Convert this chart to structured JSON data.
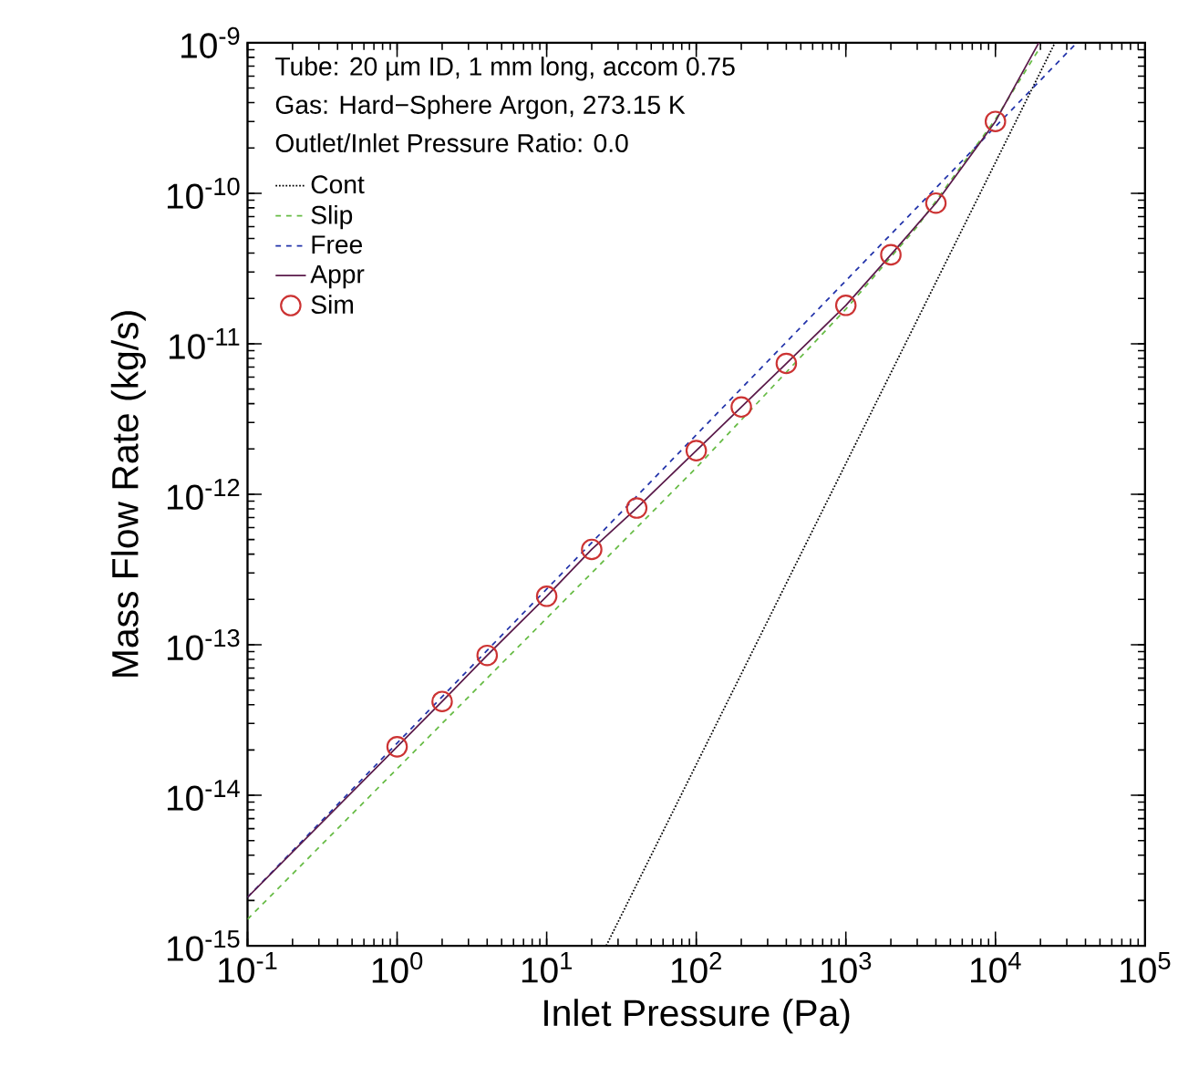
{
  "chart_data": {
    "type": "line",
    "xlabel": "Inlet Pressure (Pa)",
    "ylabel": "Mass Flow Rate (kg/s)",
    "log": "xy",
    "xlim": [
      0.1,
      100000
    ],
    "ylim": [
      1e-15,
      1e-09
    ],
    "xticks": [
      {
        "value": 0.1,
        "label": "10$^{-1}$"
      },
      {
        "value": 1,
        "label": "10$^{0}$"
      },
      {
        "value": 10,
        "label": "10$^{1}$"
      },
      {
        "value": 100,
        "label": "10$^{2}$"
      },
      {
        "value": 1000,
        "label": "10$^{3}$"
      },
      {
        "value": 10000,
        "label": "10$^{4}$"
      },
      {
        "value": 100000,
        "label": "10$^{5}$"
      }
    ],
    "yticks": [
      {
        "value": 1e-15,
        "label": "10$^{-15}$"
      },
      {
        "value": 1e-14,
        "label": "10$^{-14}$"
      },
      {
        "value": 1e-13,
        "label": "10$^{-13}$"
      },
      {
        "value": 1e-12,
        "label": "10$^{-12}$"
      },
      {
        "value": 1e-11,
        "label": "10$^{-11}$"
      },
      {
        "value": 1e-10,
        "label": "10$^{-10}$"
      },
      {
        "value": 1e-09,
        "label": "10$^{-9}$"
      }
    ],
    "annotations": [
      "Tube: 20 µm ID, 1 mm long, accom 0.75",
      "Gas: Hard−Sphere Argon, 273.15 K",
      "Outlet/Inlet Pressure Ratio: 0.0"
    ],
    "legend": "top left",
    "grid": false,
    "series": [
      {
        "name": "Cont",
        "color": "#000000",
        "line_style": "dotted",
        "marker": "none",
        "x": [
          25,
          25000
        ],
        "values": [
          1e-15,
          1e-09
        ]
      },
      {
        "name": "Slip",
        "color": "#66bb44",
        "line_style": "dashed",
        "marker": "none",
        "x": [
          0.1,
          1,
          10,
          100,
          1000,
          3000,
          10000,
          20000
        ],
        "values": [
          1.5e-15,
          1.5e-14,
          1.5e-13,
          1.5e-12,
          1.7e-11,
          6e-11,
          3.1e-10,
          9.4e-10
        ]
      },
      {
        "name": "Free",
        "color": "#2233aa",
        "line_style": "dashed",
        "marker": "none",
        "x": [
          0.1,
          35000
        ],
        "values": [
          2.1e-15,
          1e-09
        ]
      },
      {
        "name": "Appr",
        "color": "#5a1a4a",
        "line_style": "solid",
        "marker": "none",
        "x": [
          0.1,
          1,
          2,
          4,
          10,
          20,
          40,
          100,
          200,
          400,
          1000,
          2000,
          4000,
          10000,
          19500
        ],
        "values": [
          2.1e-15,
          2.1e-14,
          4.2e-14,
          8.5e-14,
          2.1e-13,
          4.3e-13,
          8.1e-13,
          1.95e-12,
          3.8e-12,
          7.4e-12,
          1.8e-11,
          3.9e-11,
          8.6e-11,
          3e-10,
          1e-09
        ]
      },
      {
        "name": "Sim",
        "type": "scatter",
        "color": "#cc3333",
        "marker": "circle",
        "x": [
          1,
          2,
          4,
          10,
          20,
          40,
          100,
          200,
          400,
          1000,
          2000,
          4000,
          10000
        ],
        "values": [
          2.1e-14,
          4.2e-14,
          8.5e-14,
          2.1e-13,
          4.3e-13,
          8.1e-13,
          1.95e-12,
          3.8e-12,
          7.4e-12,
          1.8e-11,
          3.9e-11,
          8.6e-11,
          3e-10
        ]
      }
    ]
  }
}
